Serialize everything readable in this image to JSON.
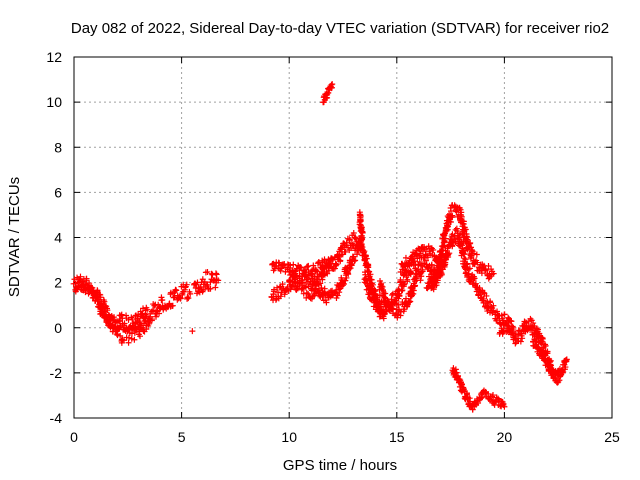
{
  "chart_data": {
    "type": "scatter",
    "title": "Day 082 of 2022, Sidereal Day-to-day VTEC variation (SDTVAR) for receiver rio2",
    "xlabel": "GPS time / hours",
    "ylabel": "SDTVAR / TECUs",
    "xlim": [
      0,
      25
    ],
    "ylim": [
      -4,
      12
    ],
    "xticks": [
      0,
      5,
      10,
      15,
      20,
      25
    ],
    "yticks": [
      -4,
      -2,
      0,
      2,
      4,
      6,
      8,
      10,
      12
    ],
    "xtick_labels": [
      "0",
      "5",
      "10",
      "15",
      "20",
      "25"
    ],
    "ytick_labels": [
      "-4",
      "-2",
      "0",
      "2",
      "4",
      "6",
      "8",
      "10",
      "12"
    ],
    "grid": true,
    "marker": "+",
    "marker_color": "#ff0000",
    "series": [
      {
        "name": "SDTVAR",
        "segments": [
          {
            "band": 0.7,
            "points": [
              [
                0,
                1.8
              ],
              [
                0.3,
                2.0
              ],
              [
                0.7,
                1.8
              ],
              [
                1.0,
                1.5
              ],
              [
                1.3,
                1.0
              ],
              [
                1.6,
                0.4
              ],
              [
                2.0,
                -0.1
              ],
              [
                2.3,
                -0.4
              ],
              [
                2.6,
                -0.3
              ],
              [
                3.0,
                -0.1
              ],
              [
                3.3,
                0.2
              ],
              [
                3.6,
                0.6
              ],
              [
                4.0,
                1.0
              ],
              [
                4.4,
                1.2
              ],
              [
                4.8,
                1.4
              ],
              [
                5.1,
                1.6
              ],
              [
                5.4,
                1.5
              ]
            ]
          },
          {
            "band": 0.6,
            "points": [
              [
                0.1,
                1.9
              ],
              [
                0.4,
                2.1
              ],
              [
                0.8,
                1.7
              ],
              [
                1.1,
                1.2
              ],
              [
                1.4,
                0.6
              ],
              [
                1.8,
                0.2
              ],
              [
                2.2,
                0.3
              ],
              [
                2.6,
                0.2
              ],
              [
                3.0,
                0.4
              ],
              [
                3.4,
                0.8
              ]
            ]
          },
          {
            "band": 0.5,
            "points": [
              [
                5.5,
                -0.15
              ]
            ]
          },
          {
            "band": 0.8,
            "points": [
              [
                5.6,
                1.6
              ],
              [
                5.9,
                1.9
              ],
              [
                6.2,
                2.1
              ],
              [
                6.5,
                2.0
              ],
              [
                6.7,
                2.1
              ]
            ]
          },
          {
            "band": 0.4,
            "points": [
              [
                9.2,
                2.7
              ],
              [
                9.7,
                2.7
              ],
              [
                10.2,
                2.6
              ],
              [
                10.7,
                2.5
              ],
              [
                11.2,
                2.6
              ],
              [
                11.7,
                2.9
              ],
              [
                12.0,
                3.0
              ]
            ]
          },
          {
            "band": 0.6,
            "points": [
              [
                9.2,
                1.4
              ],
              [
                9.6,
                1.6
              ],
              [
                10.0,
                1.9
              ],
              [
                10.4,
                2.1
              ],
              [
                10.8,
                2.3
              ],
              [
                11.2,
                2.0
              ],
              [
                11.5,
                1.6
              ],
              [
                11.8,
                1.3
              ],
              [
                12.2,
                1.6
              ],
              [
                12.6,
                2.3
              ],
              [
                13.0,
                3.2
              ],
              [
                13.3,
                3.6
              ]
            ]
          },
          {
            "band": 0.6,
            "points": [
              [
                10.0,
                2.2
              ],
              [
                10.5,
                1.8
              ],
              [
                11.0,
                1.5
              ],
              [
                11.4,
                2.1
              ],
              [
                11.8,
                2.6
              ],
              [
                12.2,
                3.0
              ],
              [
                12.6,
                3.6
              ],
              [
                13.0,
                3.9
              ],
              [
                13.3,
                3.7
              ],
              [
                13.5,
                3.2
              ],
              [
                13.7,
                2.4
              ],
              [
                13.9,
                1.6
              ],
              [
                14.1,
                1.0
              ],
              [
                14.3,
                0.6
              ],
              [
                14.5,
                0.7
              ]
            ]
          },
          {
            "band": 0.3,
            "points": [
              [
                11.6,
                10.1
              ],
              [
                11.8,
                10.4
              ],
              [
                12.0,
                10.8
              ]
            ]
          },
          {
            "band": 0.3,
            "points": [
              [
                13.3,
                5.1
              ],
              [
                13.3,
                4.6
              ],
              [
                13.4,
                4.1
              ],
              [
                13.3,
                3.6
              ]
            ]
          },
          {
            "band": 0.7,
            "points": [
              [
                13.5,
                2.2
              ],
              [
                13.8,
                1.5
              ],
              [
                14.1,
                1.0
              ],
              [
                14.4,
                0.8
              ],
              [
                14.7,
                1.0
              ],
              [
                15.0,
                1.4
              ],
              [
                15.2,
                1.9
              ],
              [
                15.5,
                2.4
              ],
              [
                15.8,
                2.8
              ],
              [
                16.2,
                2.9
              ],
              [
                16.6,
                2.5
              ],
              [
                16.9,
                2.1
              ]
            ]
          },
          {
            "band": 0.6,
            "points": [
              [
                14.2,
                1.8
              ],
              [
                14.5,
                1.2
              ],
              [
                14.8,
                0.9
              ],
              [
                15.0,
                0.7
              ],
              [
                15.3,
                0.9
              ],
              [
                15.6,
                1.4
              ],
              [
                15.9,
                2.2
              ],
              [
                16.2,
                2.5
              ]
            ]
          },
          {
            "band": 0.5,
            "points": [
              [
                15.2,
                2.6
              ],
              [
                15.6,
                3.0
              ],
              [
                16.0,
                3.3
              ],
              [
                16.4,
                3.4
              ],
              [
                16.8,
                3.2
              ],
              [
                17.0,
                2.8
              ]
            ]
          },
          {
            "band": 0.7,
            "points": [
              [
                16.5,
                2.0
              ],
              [
                16.8,
                2.2
              ],
              [
                17.0,
                2.9
              ],
              [
                17.2,
                4.0
              ],
              [
                17.4,
                4.8
              ],
              [
                17.6,
                5.2
              ],
              [
                17.9,
                5.1
              ],
              [
                18.1,
                4.4
              ],
              [
                18.3,
                3.6
              ],
              [
                18.6,
                3.0
              ],
              [
                18.9,
                2.7
              ],
              [
                19.2,
                2.5
              ],
              [
                19.5,
                2.4
              ]
            ]
          },
          {
            "band": 0.6,
            "points": [
              [
                16.4,
                1.8
              ],
              [
                16.7,
                2.0
              ],
              [
                17.0,
                2.4
              ],
              [
                17.3,
                3.2
              ],
              [
                17.6,
                3.9
              ],
              [
                17.8,
                4.1
              ],
              [
                18.0,
                3.6
              ],
              [
                18.2,
                2.7
              ],
              [
                18.5,
                2.1
              ],
              [
                18.8,
                1.7
              ],
              [
                19.1,
                1.2
              ],
              [
                19.4,
                0.8
              ],
              [
                19.7,
                0.5
              ],
              [
                20.0,
                0.3
              ],
              [
                20.3,
                0.3
              ]
            ]
          },
          {
            "band": 0.4,
            "points": [
              [
                17.6,
                -1.8
              ],
              [
                17.9,
                -2.4
              ],
              [
                18.2,
                -3.0
              ],
              [
                18.5,
                -3.5
              ],
              [
                18.8,
                -3.2
              ],
              [
                19.1,
                -2.9
              ],
              [
                19.4,
                -3.1
              ],
              [
                19.8,
                -3.4
              ],
              [
                20.0,
                -3.5
              ]
            ]
          },
          {
            "band": 0.6,
            "points": [
              [
                19.8,
                -0.1
              ],
              [
                20.1,
                -0.1
              ],
              [
                20.3,
                0.0
              ],
              [
                20.5,
                -0.4
              ],
              [
                20.8,
                -0.3
              ],
              [
                21.0,
                0.1
              ],
              [
                21.2,
                0.2
              ],
              [
                21.5,
                -0.2
              ],
              [
                21.7,
                -0.6
              ],
              [
                21.9,
                -1.1
              ],
              [
                22.1,
                -1.6
              ],
              [
                22.3,
                -2.0
              ],
              [
                22.5,
                -2.2
              ],
              [
                22.7,
                -1.9
              ],
              [
                22.9,
                -1.4
              ]
            ]
          },
          {
            "band": 0.4,
            "points": [
              [
                21.3,
                -0.5
              ],
              [
                21.6,
                -1.0
              ],
              [
                21.9,
                -1.5
              ],
              [
                22.2,
                -2.0
              ],
              [
                22.5,
                -2.4
              ]
            ]
          }
        ]
      }
    ]
  }
}
